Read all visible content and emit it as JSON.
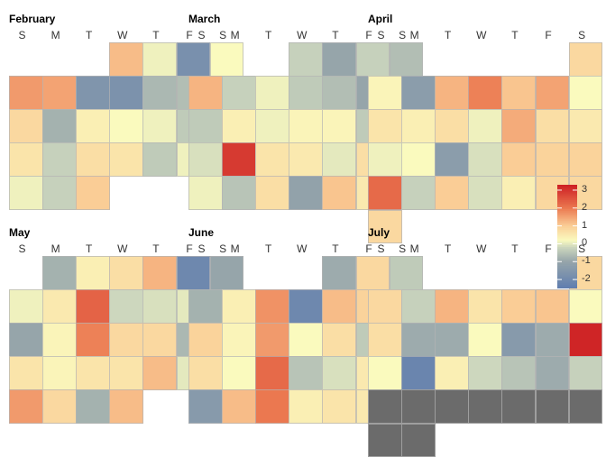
{
  "chart_data": {
    "type": "heatmap",
    "subtype": "calendar",
    "day_headers": [
      "S",
      "M",
      "T",
      "W",
      "T",
      "F",
      "S"
    ],
    "legend": {
      "ticks": [
        3,
        2,
        1,
        0,
        -1,
        -2
      ],
      "min": -2.5,
      "max": 3.3,
      "na_color": "#6b6b6b"
    },
    "panels": [
      {
        "month": "February",
        "weeks": [
          [
            null,
            null,
            null,
            1.2,
            0.1,
            -1.8,
            0.2
          ],
          [
            1.6,
            1.5,
            -1.6,
            -1.7,
            -0.7,
            -0.6,
            0.2
          ],
          [
            0.8,
            -0.8,
            0.4,
            0.2,
            0.1,
            -0.4,
            2.5
          ],
          [
            0.6,
            -0.3,
            0.7,
            0.6,
            -0.4,
            0.1,
            -0.9
          ],
          [
            0.1,
            -0.3,
            1.0,
            null,
            null,
            null,
            null
          ]
        ]
      },
      {
        "month": "March",
        "weeks": [
          [
            null,
            null,
            null,
            -0.3,
            -1.0,
            -0.3,
            -0.6
          ],
          [
            1.3,
            -0.3,
            0.1,
            -0.4,
            -0.6,
            -1.0,
            0.3
          ],
          [
            -0.4,
            0.4,
            0.1,
            0.3,
            0.3,
            -0.4,
            0.1
          ],
          [
            -0.1,
            2.9,
            0.6,
            0.5,
            0.0,
            0.7,
            0.0
          ],
          [
            0.1,
            -0.5,
            0.7,
            -1.1,
            1.1,
            0.5,
            null
          ]
        ]
      },
      {
        "month": "April",
        "weeks": [
          [
            null,
            null,
            null,
            null,
            null,
            null,
            0.8
          ],
          [
            0.3,
            -1.3,
            1.3,
            1.9,
            1.1,
            1.5,
            0.2
          ],
          [
            0.6,
            0.4,
            0.7,
            0.1,
            1.4,
            0.7,
            0.5
          ],
          [
            0.1,
            0.2,
            -1.3,
            -0.1,
            1.0,
            0.9,
            0.9
          ],
          [
            2.2,
            -0.3,
            1.0,
            -0.1,
            0.4,
            0.8,
            0.8
          ],
          [
            0.8,
            null,
            null,
            null,
            null,
            null,
            null
          ]
        ]
      },
      {
        "month": "May",
        "weeks": [
          [
            null,
            -0.8,
            0.4,
            0.7,
            1.3,
            -2.1,
            -1.0
          ],
          [
            0.1,
            0.5,
            2.3,
            -0.2,
            -0.1,
            0.0,
            1.6
          ],
          [
            -1.0,
            0.3,
            1.9,
            0.8,
            0.8,
            -0.7,
            -0.6
          ],
          [
            0.6,
            0.3,
            0.6,
            0.6,
            1.2,
            0.0,
            -0.1
          ],
          [
            1.6,
            0.8,
            -0.8,
            1.2,
            null,
            null,
            null
          ]
        ]
      },
      {
        "month": "June",
        "weeks": [
          [
            null,
            null,
            null,
            null,
            -0.9,
            0.8,
            -0.4
          ],
          [
            -0.8,
            0.4,
            1.7,
            -2.1,
            1.2,
            0.9,
            null
          ],
          [
            0.9,
            0.3,
            1.6,
            0.2,
            0.7,
            -0.4,
            1.4
          ],
          [
            0.7,
            0.2,
            2.2,
            -0.5,
            -0.1,
            0.5,
            -0.6
          ],
          [
            -1.4,
            1.2,
            2.0,
            0.4,
            0.6,
            0.5,
            null
          ]
        ]
      },
      {
        "month": "July",
        "weeks": [
          [
            null,
            null,
            null,
            null,
            null,
            null,
            0.8
          ],
          [
            0.8,
            -0.3,
            1.3,
            0.6,
            1.0,
            1.1,
            0.2
          ],
          [
            0.7,
            -0.9,
            -0.9,
            0.2,
            -1.4,
            -0.9,
            3.2
          ],
          [
            0.2,
            -2.2,
            0.4,
            -0.2,
            -0.5,
            -0.9,
            -0.3
          ],
          [
            "NA",
            "NA",
            "NA",
            "NA",
            "NA",
            "NA",
            "NA"
          ],
          [
            "NA",
            "NA",
            null,
            null,
            null,
            null,
            null
          ]
        ]
      }
    ]
  }
}
